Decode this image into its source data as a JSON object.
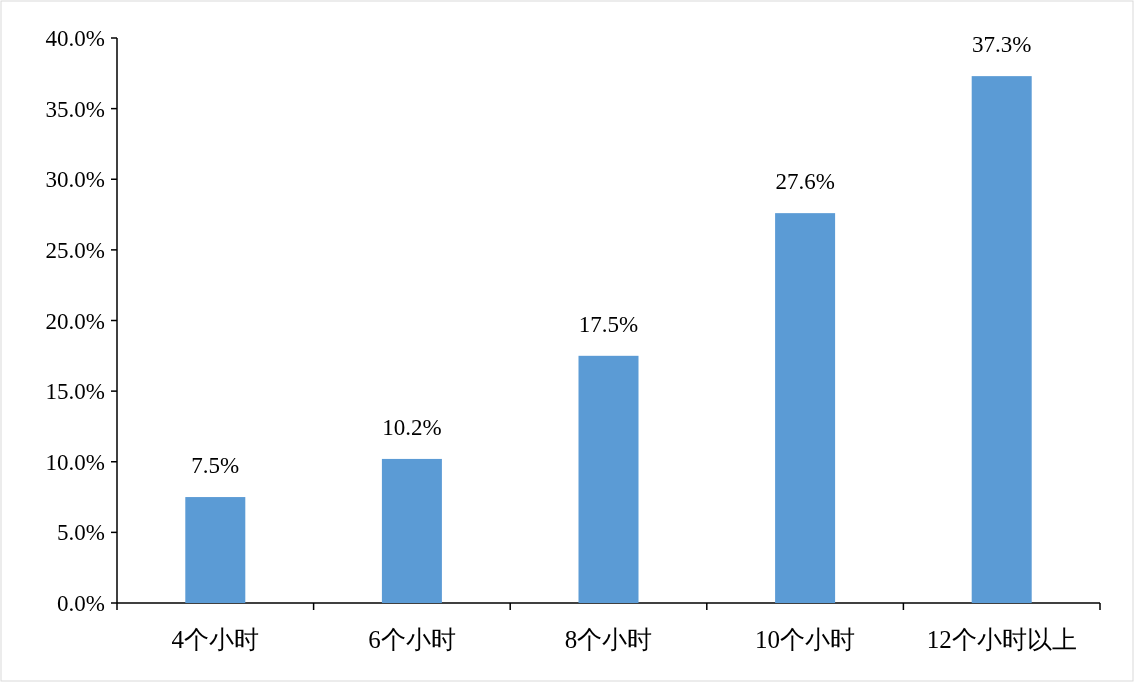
{
  "chart_data": {
    "type": "bar",
    "categories": [
      "4个小时",
      "6个小时",
      "8个小时",
      "10个小时",
      "12个小时以上"
    ],
    "values": [
      7.5,
      10.2,
      17.5,
      27.6,
      37.3
    ],
    "value_labels": [
      "7.5%",
      "10.2%",
      "17.5%",
      "27.6%",
      "37.3%"
    ],
    "color": "#5b9bd5",
    "ylim": [
      0,
      40
    ],
    "yticks": [
      {
        "value": 0,
        "label": "0.0%"
      },
      {
        "value": 5,
        "label": "5.0%"
      },
      {
        "value": 10,
        "label": "10.0%"
      },
      {
        "value": 15,
        "label": "15.0%"
      },
      {
        "value": 20,
        "label": "20.0%"
      },
      {
        "value": 25,
        "label": "25.0%"
      },
      {
        "value": 30,
        "label": "30.0%"
      },
      {
        "value": 35,
        "label": "35.0%"
      },
      {
        "value": 40,
        "label": "40.0%"
      }
    ]
  }
}
